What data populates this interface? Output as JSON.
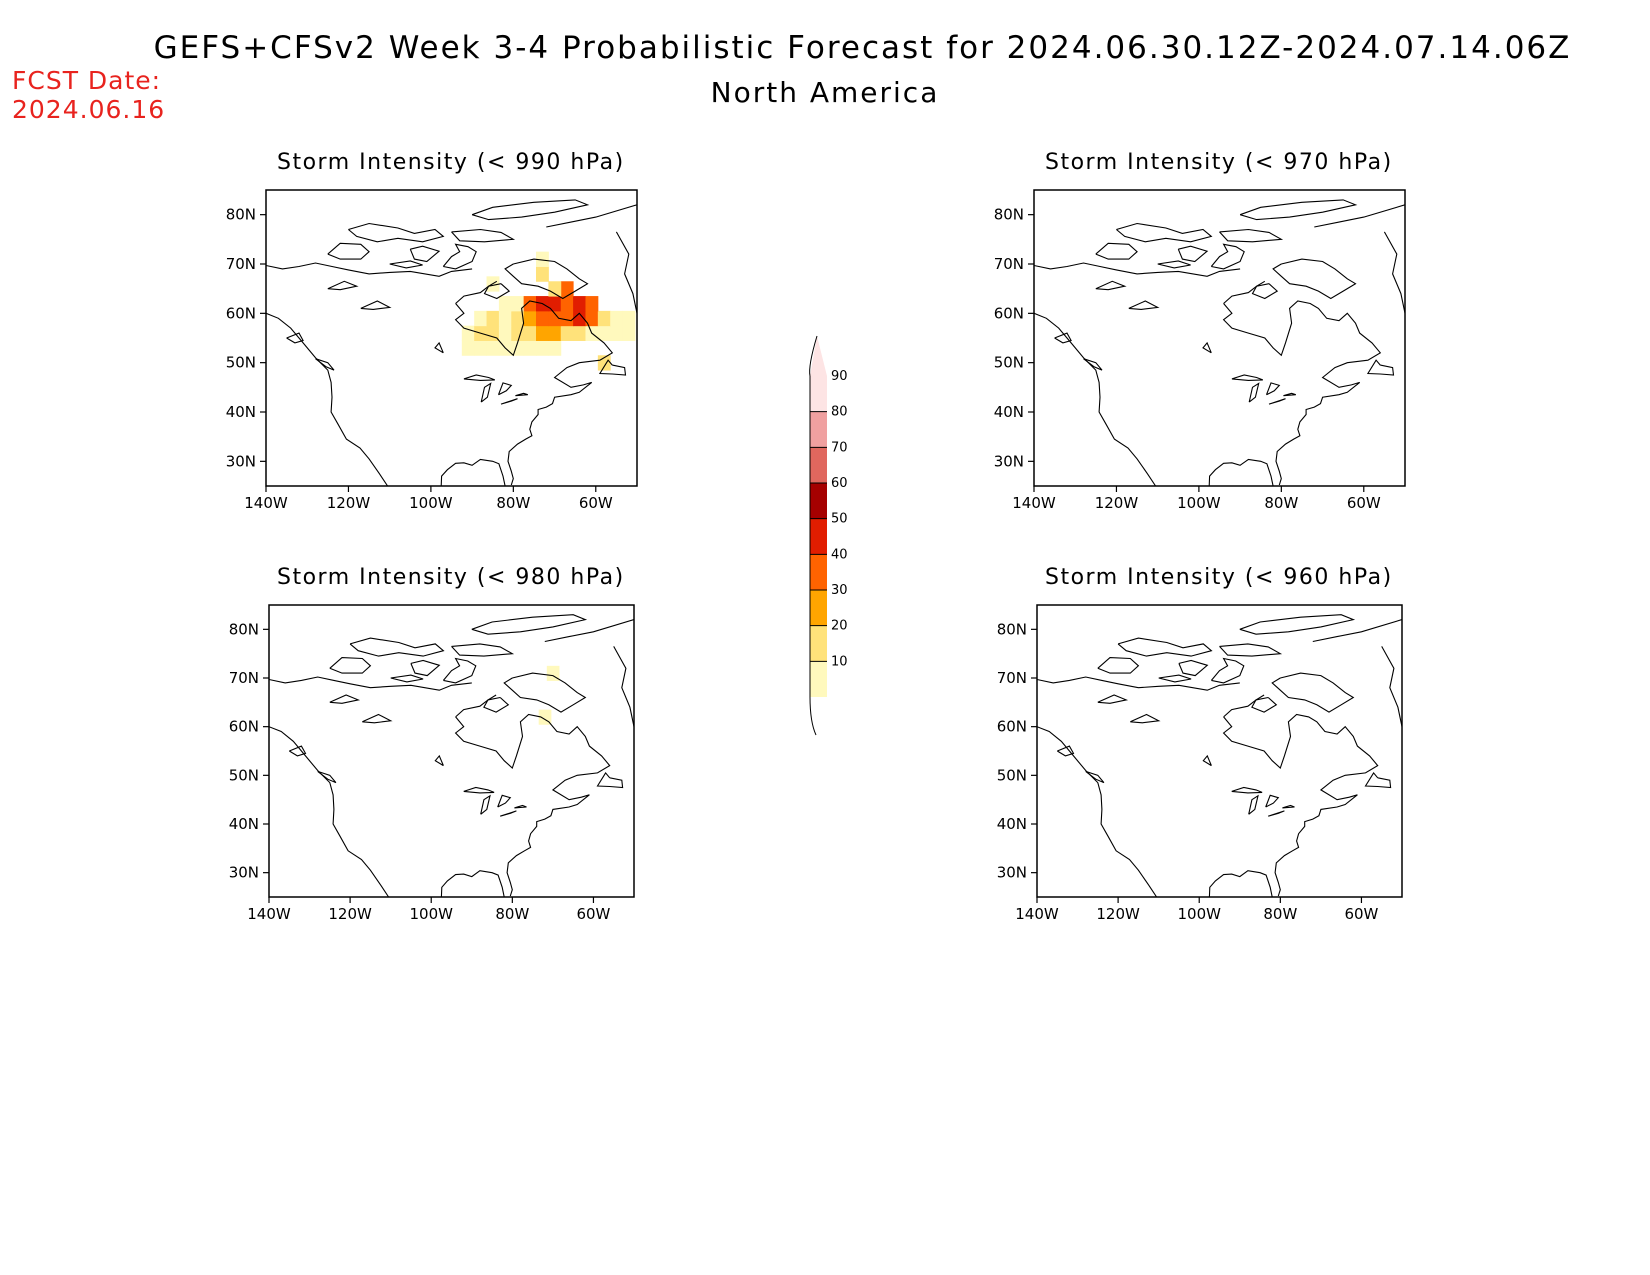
{
  "header": {
    "title": "GEFS+CFSv2 Week 3-4 Probabilistic Forecast for 2024.06.30.12Z-2024.07.14.06Z",
    "subtitle": "North America",
    "fcst_label": "FCST Date:",
    "fcst_date": "2024.06.16"
  },
  "map": {
    "lon_range": [
      -140,
      -50
    ],
    "lat_range": [
      25,
      85
    ],
    "lon_ticks": [
      {
        "value": -140,
        "label": "140W"
      },
      {
        "value": -120,
        "label": "120W"
      },
      {
        "value": -100,
        "label": "100W"
      },
      {
        "value": -80,
        "label": "80W"
      },
      {
        "value": -60,
        "label": "60W"
      }
    ],
    "lat_ticks": [
      {
        "value": 30,
        "label": "30N"
      },
      {
        "value": 40,
        "label": "40N"
      },
      {
        "value": 50,
        "label": "50N"
      },
      {
        "value": 60,
        "label": "60N"
      },
      {
        "value": 70,
        "label": "70N"
      },
      {
        "value": 80,
        "label": "80N"
      }
    ]
  },
  "panels": [
    {
      "title": "Storm Intensity (< 990 hPa)",
      "cells": [
        {
          "lon": -91,
          "lat": 53,
          "v": 15
        },
        {
          "lon": -88,
          "lat": 53,
          "v": 15
        },
        {
          "lon": -85,
          "lat": 53,
          "v": 15
        },
        {
          "lon": -82,
          "lat": 53,
          "v": 15
        },
        {
          "lon": -79,
          "lat": 53,
          "v": 15
        },
        {
          "lon": -76,
          "lat": 53,
          "v": 15
        },
        {
          "lon": -73,
          "lat": 53,
          "v": 15
        },
        {
          "lon": -70,
          "lat": 53,
          "v": 15
        },
        {
          "lon": -91,
          "lat": 56,
          "v": 15
        },
        {
          "lon": -88,
          "lat": 56,
          "v": 25
        },
        {
          "lon": -85,
          "lat": 56,
          "v": 25
        },
        {
          "lon": -82,
          "lat": 56,
          "v": 15
        },
        {
          "lon": -79,
          "lat": 56,
          "v": 25
        },
        {
          "lon": -76,
          "lat": 56,
          "v": 25
        },
        {
          "lon": -73,
          "lat": 56,
          "v": 35
        },
        {
          "lon": -70,
          "lat": 56,
          "v": 35
        },
        {
          "lon": -67,
          "lat": 56,
          "v": 25
        },
        {
          "lon": -64,
          "lat": 56,
          "v": 25
        },
        {
          "lon": -61,
          "lat": 56,
          "v": 15
        },
        {
          "lon": -58,
          "lat": 56,
          "v": 15
        },
        {
          "lon": -55,
          "lat": 56,
          "v": 15
        },
        {
          "lon": -52,
          "lat": 56,
          "v": 15
        },
        {
          "lon": -88,
          "lat": 59,
          "v": 15
        },
        {
          "lon": -85,
          "lat": 59,
          "v": 25
        },
        {
          "lon": -82,
          "lat": 59,
          "v": 15
        },
        {
          "lon": -79,
          "lat": 59,
          "v": 25
        },
        {
          "lon": -76,
          "lat": 59,
          "v": 35
        },
        {
          "lon": -73,
          "lat": 59,
          "v": 45
        },
        {
          "lon": -70,
          "lat": 59,
          "v": 45
        },
        {
          "lon": -67,
          "lat": 59,
          "v": 45
        },
        {
          "lon": -64,
          "lat": 59,
          "v": 55
        },
        {
          "lon": -61,
          "lat": 59,
          "v": 45
        },
        {
          "lon": -58,
          "lat": 59,
          "v": 25
        },
        {
          "lon": -55,
          "lat": 59,
          "v": 15
        },
        {
          "lon": -52,
          "lat": 59,
          "v": 15
        },
        {
          "lon": -82,
          "lat": 62,
          "v": 15
        },
        {
          "lon": -79,
          "lat": 62,
          "v": 15
        },
        {
          "lon": -76,
          "lat": 62,
          "v": 45
        },
        {
          "lon": -73,
          "lat": 62,
          "v": 55
        },
        {
          "lon": -70,
          "lat": 62,
          "v": 55
        },
        {
          "lon": -67,
          "lat": 62,
          "v": 45
        },
        {
          "lon": -64,
          "lat": 62,
          "v": 55
        },
        {
          "lon": -61,
          "lat": 62,
          "v": 45
        },
        {
          "lon": -67,
          "lat": 65,
          "v": 45
        },
        {
          "lon": -70,
          "lat": 65,
          "v": 25
        },
        {
          "lon": -73,
          "lat": 68,
          "v": 25
        },
        {
          "lon": -85,
          "lat": 66,
          "v": 15
        },
        {
          "lon": -73,
          "lat": 71,
          "v": 15
        },
        {
          "lon": -58,
          "lat": 50,
          "v": 25
        }
      ]
    },
    {
      "title": "Storm Intensity (< 970 hPa)",
      "cells": []
    },
    {
      "title": "Storm Intensity (< 980 hPa)",
      "cells": [
        {
          "lon": -70,
          "lat": 71,
          "v": 15
        },
        {
          "lon": -72,
          "lat": 62,
          "v": 15
        }
      ]
    },
    {
      "title": "Storm Intensity (< 960 hPa)",
      "cells": []
    }
  ],
  "colorbar": {
    "levels": [
      {
        "label": "10",
        "color": "#fff9bd"
      },
      {
        "label": "20",
        "color": "#ffe27a"
      },
      {
        "label": "30",
        "color": "#ffa500"
      },
      {
        "label": "40",
        "color": "#ff6300"
      },
      {
        "label": "50",
        "color": "#e11d00"
      },
      {
        "label": "60",
        "color": "#a50000"
      },
      {
        "label": "70",
        "color": "#e0675e"
      },
      {
        "label": "80",
        "color": "#f0a0a0"
      },
      {
        "label": "90",
        "color": "#fde4e4"
      }
    ],
    "bin_colors": [
      "#fff9bd",
      "#ffe27a",
      "#ffa500",
      "#ff6300",
      "#e11d00",
      "#a50000",
      "#e0675e",
      "#f0a0a0",
      "#fde4e4"
    ]
  }
}
